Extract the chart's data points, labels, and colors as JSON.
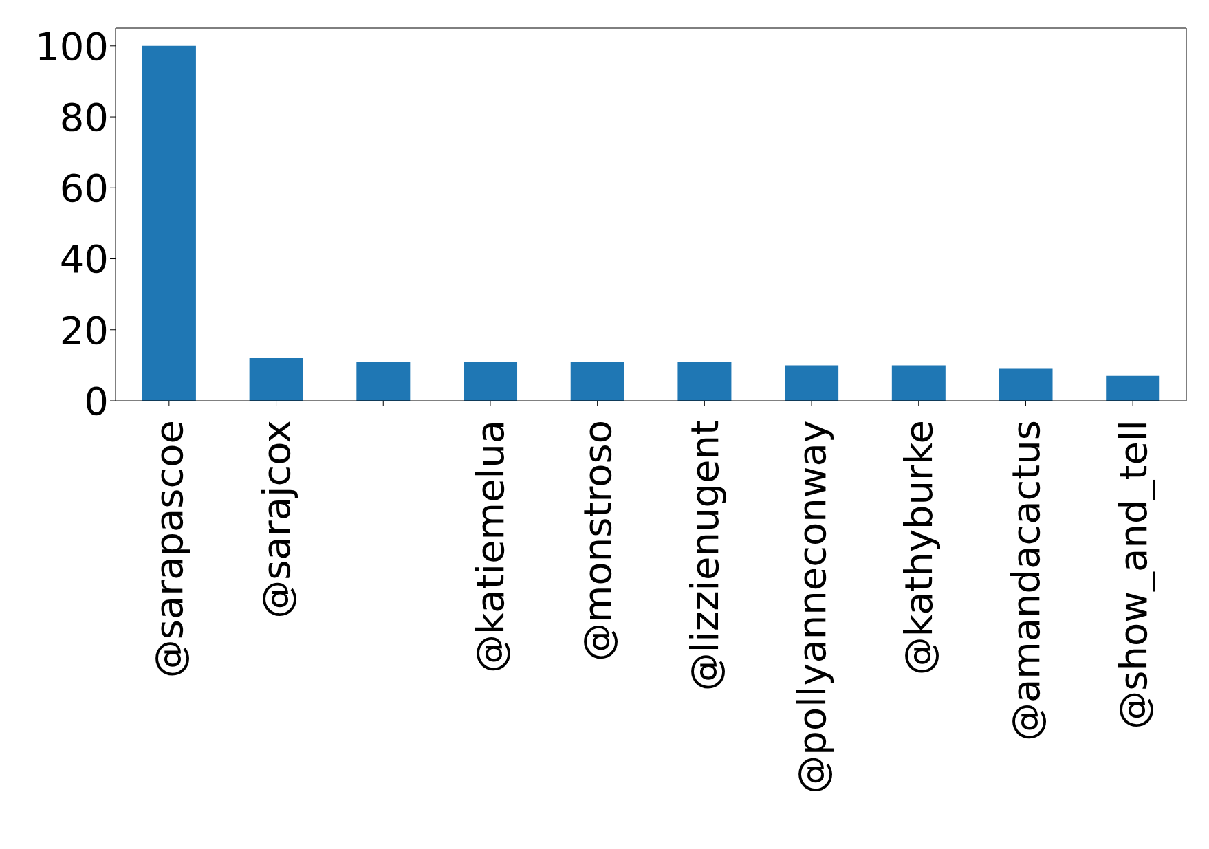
{
  "chart_data": {
    "type": "bar",
    "categories": [
      "@sarapascoe",
      "@sarajcox",
      null,
      "@katiemelua",
      "@monstroso",
      "@lizzienugent",
      "@pollyanneconway",
      "@kathyburke",
      "@amandacactus",
      "@show_and_tell"
    ],
    "values": [
      100,
      12,
      11,
      11,
      11,
      11,
      10,
      10,
      9,
      7
    ],
    "color": "#1f77b4",
    "ylim": [
      0,
      105
    ],
    "yticks": [
      0,
      20,
      40,
      60,
      80,
      100
    ],
    "grid": false
  }
}
